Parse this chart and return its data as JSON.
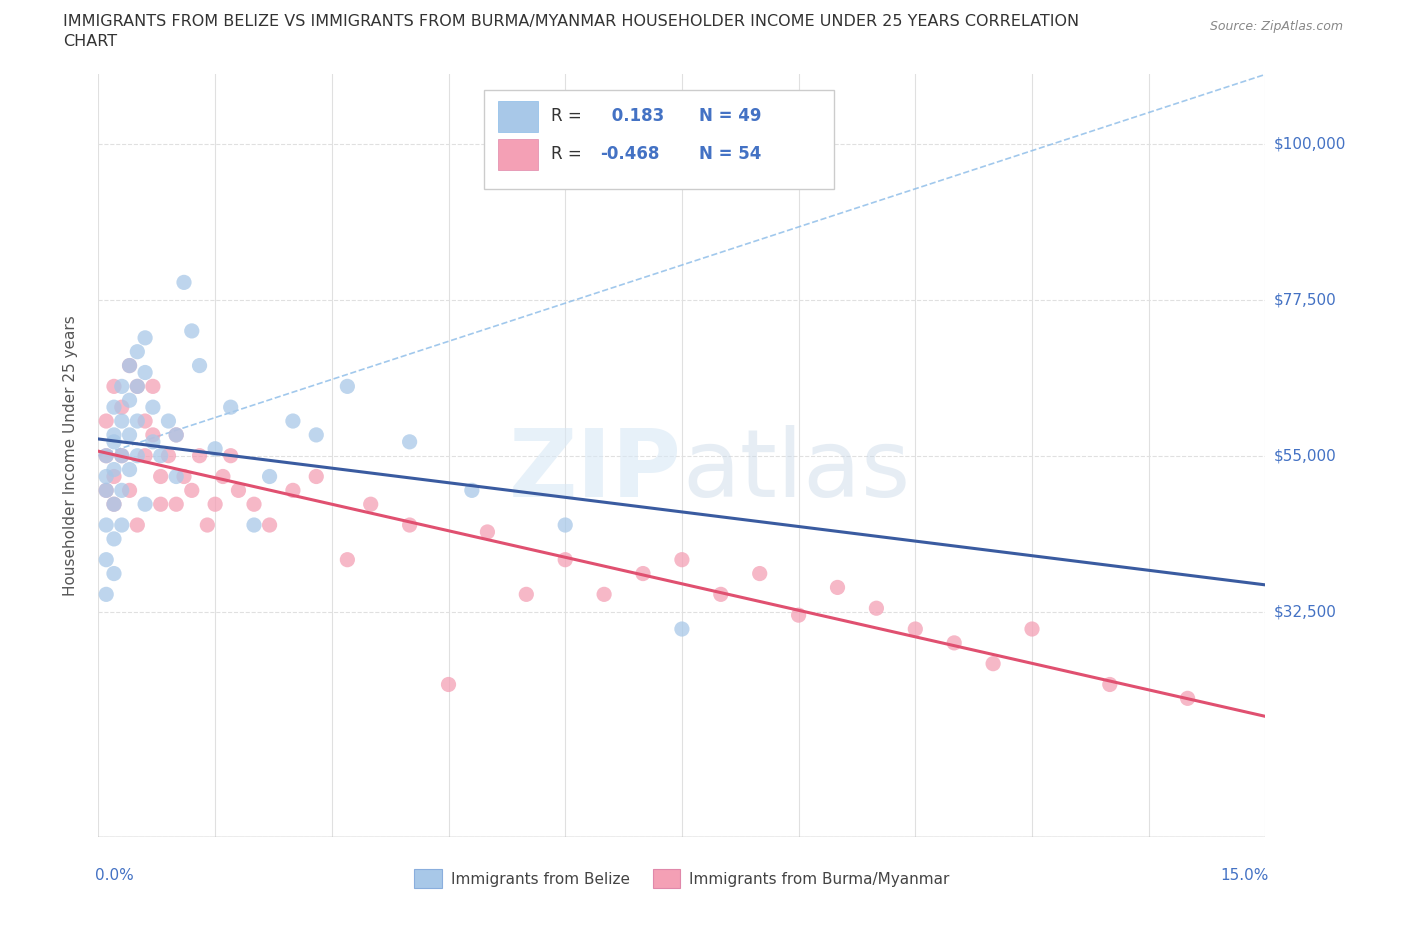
{
  "title_line1": "IMMIGRANTS FROM BELIZE VS IMMIGRANTS FROM BURMA/MYANMAR HOUSEHOLDER INCOME UNDER 25 YEARS CORRELATION",
  "title_line2": "CHART",
  "source": "Source: ZipAtlas.com",
  "ylabel": "Householder Income Under 25 years",
  "xmin": 0.0,
  "xmax": 0.15,
  "ymin": 0.0,
  "ymax": 110000,
  "yticks": [
    0,
    32500,
    55000,
    77500,
    100000
  ],
  "ytick_labels": [
    "",
    "$32,500",
    "$55,000",
    "$77,500",
    "$100,000"
  ],
  "belize_color": "#A8C8E8",
  "burma_color": "#F4A0B5",
  "belize_line_color": "#3A5BA0",
  "burma_line_color": "#E05070",
  "dash_line_color": "#8ABBE8",
  "R_belize": 0.183,
  "N_belize": 49,
  "R_burma": -0.468,
  "N_burma": 54,
  "belize_x": [
    0.001,
    0.001,
    0.001,
    0.001,
    0.001,
    0.001,
    0.002,
    0.002,
    0.002,
    0.002,
    0.002,
    0.002,
    0.002,
    0.003,
    0.003,
    0.003,
    0.003,
    0.003,
    0.004,
    0.004,
    0.004,
    0.004,
    0.005,
    0.005,
    0.005,
    0.005,
    0.006,
    0.006,
    0.006,
    0.007,
    0.007,
    0.008,
    0.009,
    0.01,
    0.01,
    0.011,
    0.012,
    0.013,
    0.015,
    0.017,
    0.02,
    0.022,
    0.025,
    0.028,
    0.032,
    0.04,
    0.048,
    0.06,
    0.075
  ],
  "belize_y": [
    55000,
    50000,
    45000,
    40000,
    35000,
    52000,
    62000,
    58000,
    53000,
    48000,
    43000,
    38000,
    57000,
    65000,
    60000,
    55000,
    50000,
    45000,
    68000,
    63000,
    58000,
    53000,
    70000,
    65000,
    60000,
    55000,
    72000,
    67000,
    48000,
    62000,
    57000,
    55000,
    60000,
    58000,
    52000,
    80000,
    73000,
    68000,
    56000,
    62000,
    45000,
    52000,
    60000,
    58000,
    65000,
    57000,
    50000,
    45000,
    30000
  ],
  "burma_x": [
    0.001,
    0.001,
    0.001,
    0.002,
    0.002,
    0.002,
    0.003,
    0.003,
    0.004,
    0.004,
    0.005,
    0.005,
    0.006,
    0.006,
    0.007,
    0.007,
    0.008,
    0.008,
    0.009,
    0.01,
    0.01,
    0.011,
    0.012,
    0.013,
    0.014,
    0.015,
    0.016,
    0.017,
    0.018,
    0.02,
    0.022,
    0.025,
    0.028,
    0.032,
    0.035,
    0.04,
    0.045,
    0.05,
    0.055,
    0.06,
    0.065,
    0.07,
    0.075,
    0.08,
    0.085,
    0.09,
    0.095,
    0.1,
    0.105,
    0.11,
    0.115,
    0.12,
    0.13,
    0.14
  ],
  "burma_y": [
    60000,
    55000,
    50000,
    65000,
    52000,
    48000,
    62000,
    55000,
    68000,
    50000,
    65000,
    45000,
    60000,
    55000,
    58000,
    65000,
    52000,
    48000,
    55000,
    58000,
    48000,
    52000,
    50000,
    55000,
    45000,
    48000,
    52000,
    55000,
    50000,
    48000,
    45000,
    50000,
    52000,
    40000,
    48000,
    45000,
    22000,
    44000,
    35000,
    40000,
    35000,
    38000,
    40000,
    35000,
    38000,
    32000,
    36000,
    33000,
    30000,
    28000,
    25000,
    30000,
    22000,
    20000
  ],
  "watermark_zip": "ZIP",
  "watermark_atlas": "atlas",
  "background_color": "#FFFFFF",
  "grid_color": "#E0E0E0",
  "label_color": "#4472C4",
  "title_color": "#333333",
  "legend_text_color": "#333333"
}
